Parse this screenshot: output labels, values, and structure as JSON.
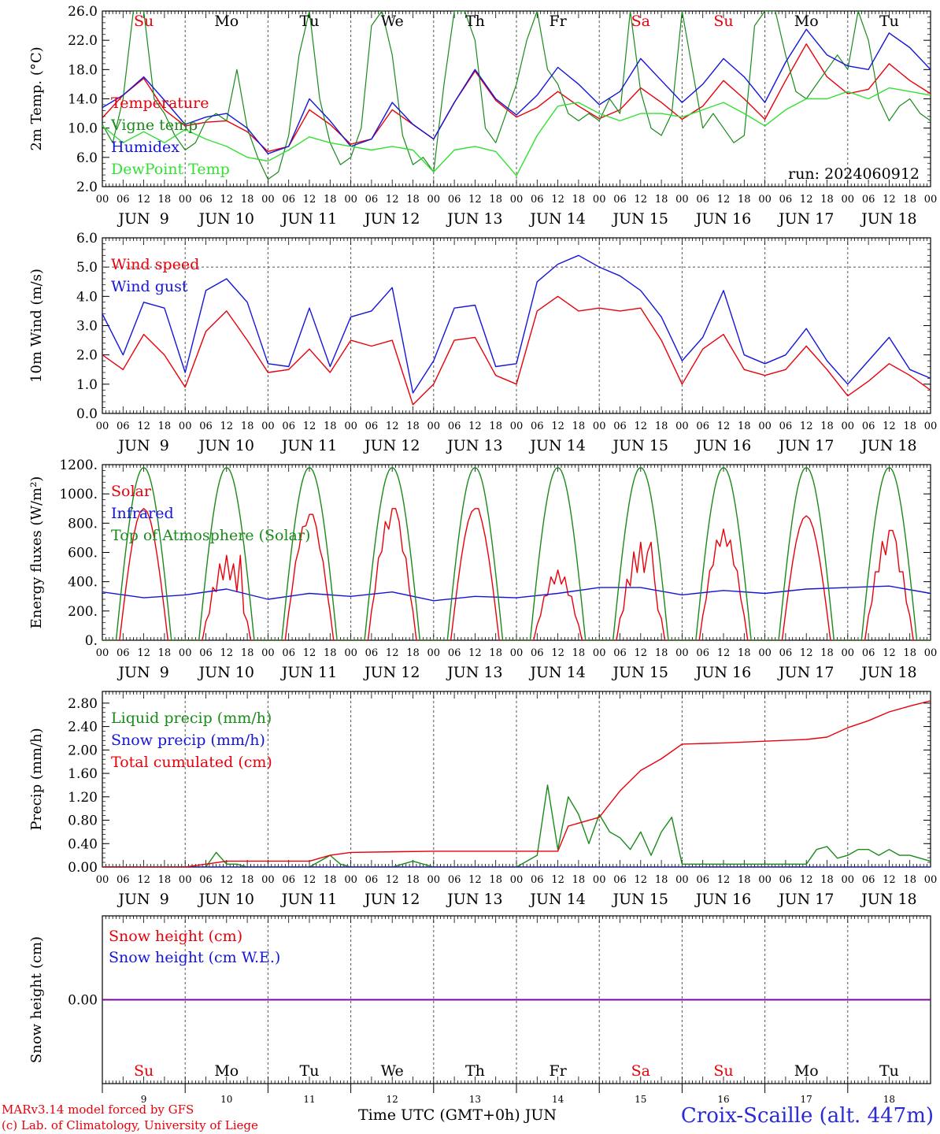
{
  "run_label": "run: 2024060912",
  "xaxis": {
    "hour_ticks": [
      "00",
      "06",
      "12",
      "18"
    ],
    "end_tick": "00",
    "date_labels": [
      "JUN  9",
      "JUN 10",
      "JUN 11",
      "JUN 12",
      "JUN 13",
      "JUN 14",
      "JUN 15",
      "JUN 16",
      "JUN 17",
      "JUN 18"
    ],
    "weekdays": [
      "Su",
      "Mo",
      "Tu",
      "We",
      "Th",
      "Fr",
      "Sa",
      "Su",
      "Mo",
      "Tu"
    ],
    "weekend": [
      true,
      false,
      false,
      false,
      false,
      false,
      true,
      true,
      false,
      false
    ],
    "day_numbers": [
      "9",
      "10",
      "11",
      "12",
      "13",
      "14",
      "15",
      "16",
      "17",
      "18"
    ],
    "time_label": "Time UTC (GMT+0h) JUN"
  },
  "footer": {
    "credit_line1": "MARv3.14 model forced by GFS",
    "credit_line2": "(c) Lab. of Climatology, University of Liege",
    "station": "Croix-Scaille (alt. 447m)"
  },
  "colors": {
    "red": "#e8000b",
    "blue": "#1515d8",
    "green": "#1a8a1a",
    "lightgreen": "#33e033",
    "purple": "#8000a0",
    "grid": "#555555"
  },
  "chart_data": [
    {
      "type": "line",
      "ylabel": "2m Temp. (°C)",
      "ylim": [
        2,
        26
      ],
      "yticks": [
        "2.0",
        "6.0",
        "10.0",
        "14.0",
        "18.0",
        "22.0",
        "26.0"
      ],
      "legend": [
        "Temperature",
        "Vigne temp",
        "Humidex",
        "DewPoint Temp"
      ],
      "series": [
        {
          "name": "Temperature",
          "color": "red",
          "x_hours": [
            0,
            6,
            12,
            18,
            24,
            30,
            36,
            42,
            48,
            54,
            60,
            66,
            72,
            78,
            84,
            90,
            96,
            102,
            108,
            114,
            120,
            126,
            132,
            138,
            144,
            150,
            156,
            162,
            168,
            174,
            180,
            186,
            192,
            198,
            204,
            210,
            216,
            222,
            228,
            234,
            240
          ],
          "values": [
            11.4,
            14.5,
            16.8,
            12.5,
            10.3,
            10.8,
            11.0,
            9.5,
            6.8,
            7.5,
            12.5,
            10.5,
            7.8,
            8.5,
            12.5,
            10.5,
            8.5,
            13.5,
            17.8,
            13.8,
            11.5,
            12.8,
            15.0,
            13.0,
            11.3,
            12.5,
            15.5,
            13.5,
            11.2,
            13.0,
            16.5,
            14.0,
            11.2,
            16.5,
            21.5,
            17.0,
            14.7,
            15.3,
            18.8,
            16.5,
            14.7
          ]
        },
        {
          "name": "Vigne temp",
          "color": "green",
          "x_hours": [
            0,
            3,
            6,
            9,
            12,
            15,
            18,
            21,
            24,
            27,
            30,
            33,
            36,
            39,
            42,
            45,
            48,
            51,
            54,
            57,
            60,
            63,
            66,
            69,
            72,
            75,
            78,
            81,
            84,
            87,
            90,
            93,
            96,
            99,
            102,
            105,
            108,
            111,
            114,
            117,
            120,
            123,
            126,
            129,
            132,
            135,
            138,
            141,
            144,
            147,
            150,
            153,
            156,
            159,
            162,
            165,
            168,
            171,
            174,
            177,
            180,
            183,
            186,
            189,
            192,
            195,
            198,
            201,
            204,
            207,
            210,
            213,
            216,
            219,
            222,
            225,
            228,
            231,
            234,
            237,
            240
          ],
          "values": [
            10.5,
            8,
            14,
            26,
            26,
            14,
            12,
            9,
            7,
            8,
            11,
            12,
            11,
            18,
            10,
            6,
            3,
            4,
            9,
            20,
            26,
            14,
            8,
            5,
            6,
            10,
            24,
            26,
            20,
            9,
            5,
            6,
            4,
            16,
            26,
            26,
            22,
            10,
            8,
            12,
            16,
            22,
            26,
            18,
            16,
            12,
            11,
            12,
            11,
            14,
            12,
            26,
            15,
            10,
            9,
            12,
            26,
            18,
            10,
            12,
            10,
            8,
            9,
            24,
            26,
            26,
            20,
            15,
            14,
            16,
            18,
            20,
            18,
            26,
            22,
            14,
            11,
            13,
            14,
            12,
            11
          ]
        },
        {
          "name": "Humidex",
          "color": "blue",
          "x_hours": [
            0,
            6,
            12,
            18,
            24,
            30,
            36,
            42,
            48,
            54,
            60,
            66,
            72,
            78,
            84,
            90,
            96,
            102,
            108,
            114,
            120,
            126,
            132,
            138,
            144,
            150,
            156,
            162,
            168,
            174,
            180,
            186,
            192,
            198,
            204,
            210,
            216,
            222,
            228,
            234,
            240
          ],
          "values": [
            12.8,
            14.5,
            17.0,
            13.8,
            10.5,
            11.5,
            12.0,
            10.0,
            6.5,
            7.5,
            14.0,
            11.0,
            7.5,
            8.5,
            13.5,
            10.5,
            8.5,
            13.5,
            18.0,
            14.0,
            11.8,
            14.5,
            18.3,
            16.0,
            13.2,
            15.0,
            19.5,
            16.5,
            13.5,
            16.0,
            19.5,
            17.0,
            13.5,
            19.0,
            23.5,
            20.0,
            18.5,
            18.0,
            23.0,
            21.0,
            18.0
          ]
        },
        {
          "name": "DewPoint Temp",
          "color": "lightgreen",
          "x_hours": [
            0,
            6,
            12,
            18,
            24,
            30,
            36,
            42,
            48,
            54,
            60,
            66,
            72,
            78,
            84,
            90,
            96,
            102,
            108,
            114,
            120,
            126,
            132,
            138,
            144,
            150,
            156,
            162,
            168,
            174,
            180,
            186,
            192,
            198,
            204,
            210,
            216,
            222,
            228,
            234,
            240
          ],
          "values": [
            10.3,
            8.0,
            9.5,
            8.0,
            9.8,
            8.5,
            7.5,
            6.0,
            5.5,
            7.0,
            8.8,
            8.0,
            7.5,
            7.0,
            7.5,
            7.0,
            4.0,
            7.0,
            7.5,
            6.8,
            3.5,
            9.0,
            13.0,
            13.5,
            12.0,
            11.0,
            12.0,
            12.0,
            11.5,
            12.5,
            13.5,
            12.0,
            10.3,
            12.5,
            14.0,
            14.0,
            15.0,
            14.0,
            15.5,
            15.0,
            14.5
          ]
        }
      ]
    },
    {
      "type": "line",
      "ylabel": "10m Wind (m/s)",
      "ylim": [
        0,
        6
      ],
      "yticks": [
        "0.0",
        "1.0",
        "2.0",
        "3.0",
        "4.0",
        "5.0",
        "6.0"
      ],
      "reference_line": 5.0,
      "legend": [
        "Wind speed",
        "Wind gust"
      ],
      "series": [
        {
          "name": "Wind speed",
          "color": "red",
          "x_hours": [
            0,
            6,
            12,
            18,
            24,
            30,
            36,
            42,
            48,
            54,
            60,
            66,
            72,
            78,
            84,
            90,
            96,
            102,
            108,
            114,
            120,
            126,
            132,
            138,
            144,
            150,
            156,
            162,
            168,
            174,
            180,
            186,
            192,
            198,
            204,
            210,
            216,
            222,
            228,
            234,
            240
          ],
          "values": [
            2.0,
            1.5,
            2.7,
            2.0,
            0.9,
            2.8,
            3.5,
            2.5,
            1.4,
            1.5,
            2.2,
            1.4,
            2.5,
            2.3,
            2.5,
            0.3,
            1.0,
            2.5,
            2.6,
            1.3,
            1.0,
            3.5,
            4.0,
            3.5,
            3.6,
            3.5,
            3.6,
            2.5,
            1.0,
            2.2,
            2.7,
            1.5,
            1.3,
            1.5,
            2.3,
            1.5,
            0.6,
            1.1,
            1.7,
            1.3,
            0.8
          ]
        },
        {
          "name": "Wind gust",
          "color": "blue",
          "x_hours": [
            0,
            6,
            12,
            18,
            24,
            30,
            36,
            42,
            48,
            54,
            60,
            66,
            72,
            78,
            84,
            90,
            96,
            102,
            108,
            114,
            120,
            126,
            132,
            138,
            144,
            150,
            156,
            162,
            168,
            174,
            180,
            186,
            192,
            198,
            204,
            210,
            216,
            222,
            228,
            234,
            240
          ],
          "values": [
            3.4,
            2.0,
            3.8,
            3.6,
            1.4,
            4.2,
            4.6,
            3.8,
            1.7,
            1.6,
            3.6,
            1.6,
            3.3,
            3.5,
            4.3,
            0.7,
            1.8,
            3.6,
            3.7,
            1.6,
            1.7,
            4.5,
            5.1,
            5.4,
            5.0,
            4.7,
            4.2,
            3.3,
            1.8,
            2.6,
            4.2,
            2.0,
            1.7,
            2.0,
            2.9,
            1.8,
            1.0,
            1.8,
            2.6,
            1.5,
            1.2
          ]
        }
      ]
    },
    {
      "type": "line",
      "ylabel": "Energy fluxes (W/m²)",
      "ylim": [
        0,
        1200
      ],
      "yticks": [
        "0.",
        "200.",
        "400.",
        "600.",
        "800.",
        "1000.",
        "1200."
      ],
      "legend": [
        "Solar",
        "Infrared",
        "Top of Atmosphere (Solar)"
      ],
      "series": [
        {
          "name": "Solar",
          "color": "red",
          "daily_peaks": [
            900,
            580,
            860,
            900,
            900,
            480,
            670,
            760,
            850,
            750
          ],
          "daily_peak_hour": [
            12,
            16,
            13,
            13,
            13,
            12,
            15,
            12,
            12,
            13
          ],
          "daily_shape": [
            1,
            0.4,
            0.85,
            0.7,
            1,
            0.6,
            0.35,
            0.7,
            1,
            0.55
          ]
        },
        {
          "name": "Infrared",
          "color": "blue",
          "x_hours": [
            0,
            12,
            24,
            36,
            48,
            60,
            72,
            84,
            96,
            108,
            120,
            132,
            144,
            156,
            168,
            180,
            192,
            204,
            216,
            228,
            240
          ],
          "values": [
            330,
            290,
            310,
            350,
            280,
            320,
            300,
            330,
            270,
            300,
            290,
            320,
            360,
            360,
            310,
            340,
            320,
            350,
            360,
            370,
            320
          ]
        },
        {
          "name": "Top of Atmosphere (Solar)",
          "color": "green",
          "daily_peak": 1180,
          "sunrise_hour": 4,
          "sunset_hour": 20
        }
      ]
    },
    {
      "type": "line",
      "ylabel": "Precip (mm/h)",
      "ylim": [
        0,
        3.0
      ],
      "yticks": [
        "0.00",
        "0.40",
        "0.80",
        "1.20",
        "1.60",
        "2.00",
        "2.40",
        "2.80"
      ],
      "legend": [
        "Liquid precip (mm/h)",
        "Snow precip (mm/h)",
        "Total cumulated (cm)"
      ],
      "series": [
        {
          "name": "Liquid precip (mm/h)",
          "color": "green",
          "x_hours": [
            0,
            30,
            33,
            36,
            39,
            42,
            60,
            63,
            66,
            69,
            72,
            84,
            90,
            96,
            108,
            120,
            126,
            129,
            132,
            135,
            138,
            141,
            144,
            147,
            150,
            153,
            156,
            159,
            162,
            165,
            168,
            180,
            192,
            198,
            204,
            207,
            210,
            213,
            216,
            219,
            222,
            225,
            228,
            231,
            234,
            237,
            240
          ],
          "values": [
            0,
            0,
            0.25,
            0.05,
            0.05,
            0,
            0,
            0.1,
            0.2,
            0.05,
            0,
            0,
            0.1,
            0,
            0,
            0,
            0.2,
            1.4,
            0.3,
            1.2,
            0.9,
            0.4,
            0.9,
            0.6,
            0.5,
            0.3,
            0.6,
            0.2,
            0.6,
            0.85,
            0.05,
            0.05,
            0.05,
            0.05,
            0.05,
            0.3,
            0.35,
            0.15,
            0.2,
            0.3,
            0.3,
            0.2,
            0.3,
            0.2,
            0.2,
            0.15,
            0.1
          ]
        },
        {
          "name": "Snow precip (mm/h)",
          "color": "blue",
          "x_hours": [
            0,
            240
          ],
          "values": [
            0,
            0
          ]
        },
        {
          "name": "Total cumulated (cm)",
          "color": "red",
          "x_hours": [
            0,
            24,
            30,
            36,
            48,
            60,
            66,
            72,
            96,
            108,
            120,
            132,
            135,
            138,
            144,
            150,
            156,
            162,
            168,
            180,
            192,
            204,
            210,
            216,
            222,
            228,
            234,
            240
          ],
          "values": [
            0,
            0,
            0.05,
            0.1,
            0.1,
            0.1,
            0.2,
            0.25,
            0.27,
            0.27,
            0.27,
            0.27,
            0.7,
            0.75,
            0.85,
            1.3,
            1.65,
            1.85,
            2.1,
            2.12,
            2.15,
            2.18,
            2.22,
            2.38,
            2.5,
            2.65,
            2.75,
            2.84
          ]
        }
      ]
    },
    {
      "type": "line",
      "ylabel": "Snow height (cm)",
      "ylim": [
        -1,
        1
      ],
      "yticks": [
        "0.00"
      ],
      "legend": [
        "Snow height (cm)",
        "Snow height (cm W.E.)"
      ],
      "series": [
        {
          "name": "Snow height (cm)",
          "color": "red",
          "x_hours": [
            0,
            240
          ],
          "values": [
            0,
            0
          ]
        },
        {
          "name": "Snow height (cm W.E.)",
          "color": "blue",
          "x_hours": [
            0,
            240
          ],
          "values": [
            0,
            0
          ]
        }
      ]
    }
  ]
}
